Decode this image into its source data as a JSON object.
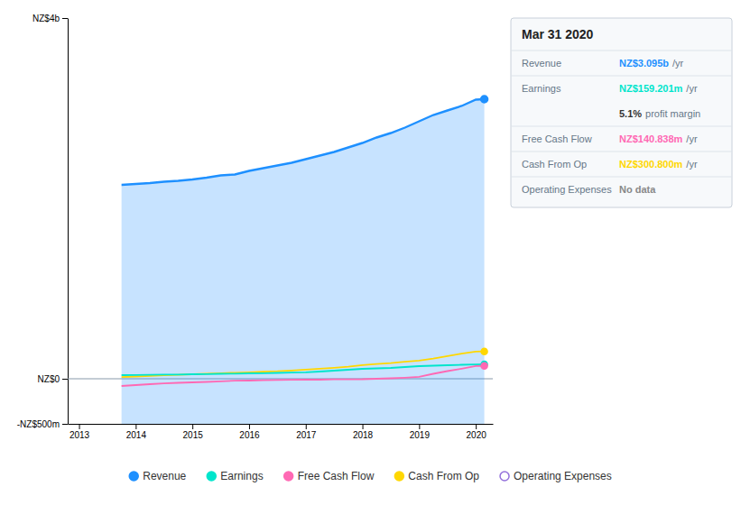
{
  "chart_data": {
    "type": "line",
    "title": "Mar 31 2020",
    "x": [
      2013.75,
      2014.0,
      2014.25,
      2014.5,
      2014.75,
      2015.0,
      2015.25,
      2015.5,
      2015.75,
      2016.0,
      2016.25,
      2016.5,
      2016.75,
      2017.0,
      2017.25,
      2017.5,
      2017.75,
      2018.0,
      2018.25,
      2018.5,
      2018.75,
      2019.0,
      2019.25,
      2019.5,
      2019.75,
      2020.0,
      2020.15
    ],
    "series": [
      {
        "name": "Revenue",
        "color": "#1e90ff",
        "type": "area",
        "marker": "circle",
        "values": [
          2150,
          2160,
          2170,
          2185,
          2195,
          2210,
          2230,
          2255,
          2265,
          2305,
          2335,
          2365,
          2395,
          2435,
          2475,
          2515,
          2565,
          2615,
          2675,
          2725,
          2785,
          2855,
          2925,
          2975,
          3025,
          3095,
          3100
        ]
      },
      {
        "name": "Earnings",
        "color": "#00e5cc",
        "marker": "circle",
        "values": [
          40,
          42,
          44,
          46,
          47,
          50,
          52,
          55,
          57,
          60,
          62,
          65,
          68,
          72,
          80,
          90,
          100,
          110,
          115,
          120,
          130,
          140,
          145,
          150,
          155,
          159,
          160
        ]
      },
      {
        "name": "Free Cash Flow",
        "color": "#ff69b4",
        "marker": "circle",
        "values": [
          -80,
          -70,
          -60,
          -52,
          -45,
          -40,
          -35,
          -28,
          -22,
          -20,
          -16,
          -14,
          -12,
          -10,
          -10,
          -7,
          -6,
          -5,
          0,
          5,
          12,
          22,
          55,
          85,
          112,
          141,
          142
        ]
      },
      {
        "name": "Cash From Op",
        "color": "#ffd700",
        "marker": "circle",
        "values": [
          18,
          25,
          32,
          38,
          44,
          50,
          56,
          62,
          67,
          72,
          78,
          83,
          92,
          102,
          112,
          122,
          133,
          152,
          163,
          173,
          188,
          202,
          223,
          252,
          278,
          301,
          303
        ]
      },
      {
        "name": "Operating Expenses",
        "color": "#9370db",
        "marker": "open-circle",
        "values": [
          null,
          null,
          null,
          null,
          null,
          null,
          null,
          null,
          null,
          null,
          null,
          null,
          null,
          null,
          null,
          null,
          null,
          null,
          null,
          null,
          null,
          null,
          null,
          null,
          null,
          null,
          null
        ]
      }
    ],
    "xlim": [
      2012.8,
      2020.3
    ],
    "xticks": [
      2013,
      2014,
      2015,
      2016,
      2017,
      2018,
      2019,
      2020
    ],
    "ylim": [
      -500,
      4000
    ],
    "yticks": [
      {
        "value": -500,
        "label": "-NZ$500m"
      },
      {
        "value": 0,
        "label": "NZ$0"
      },
      {
        "value": 4000,
        "label": "NZ$4b"
      }
    ],
    "grid": false,
    "legend": "bottom",
    "annotations": [
      {
        "label": "Revenue",
        "text": "NZ$3.095b",
        "suffix": "/yr",
        "color": "#1e90ff"
      },
      {
        "label": "Earnings",
        "text": "NZ$159.201m",
        "suffix": "/yr",
        "color": "#00e5cc"
      },
      {
        "text": "5.1%",
        "suffix": "profit margin",
        "color": "#333333"
      },
      {
        "label": "Free Cash Flow",
        "text": "NZ$140.838m",
        "suffix": "/yr",
        "color": "#ff69b4"
      },
      {
        "label": "Cash From Op",
        "text": "NZ$300.800m",
        "suffix": "/yr",
        "color": "#ffd700"
      },
      {
        "label": "Operating Expenses",
        "text": "No data",
        "color": "#888888"
      }
    ]
  }
}
